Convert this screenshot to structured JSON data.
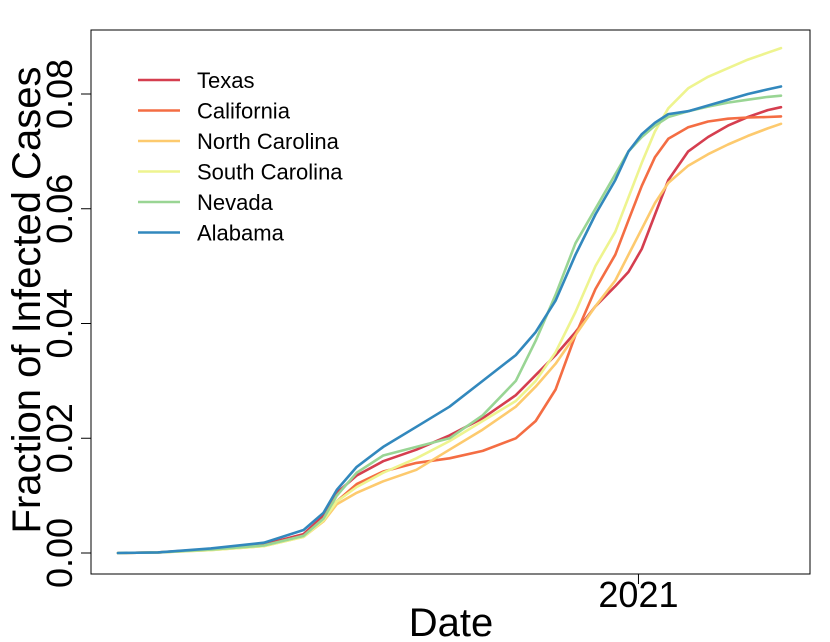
{
  "chart_data": {
    "type": "line",
    "title": "",
    "xlabel": "Date",
    "ylabel": "Fraction of Infected Cases",
    "x_tick_labels": [
      {
        "value": 0.785,
        "label": "2021"
      }
    ],
    "y_ticks": [
      0.0,
      0.02,
      0.04,
      0.06,
      0.08
    ],
    "y_tick_labels": [
      "0.00",
      "0.02",
      "0.04",
      "0.06",
      "0.08"
    ],
    "xlim": [
      0,
      1
    ],
    "ylim": [
      0.0,
      0.0885
    ],
    "grid": false,
    "legend_placement": "top-left",
    "series": [
      {
        "name": "Texas",
        "color": "#D53E4F",
        "x": [
          0,
          0.06,
          0.14,
          0.22,
          0.28,
          0.31,
          0.33,
          0.36,
          0.4,
          0.45,
          0.5,
          0.55,
          0.6,
          0.63,
          0.66,
          0.69,
          0.72,
          0.75,
          0.77,
          0.79,
          0.81,
          0.83,
          0.86,
          0.89,
          0.92,
          0.95,
          0.98,
          1.0
        ],
        "y": [
          0,
          0.0001,
          0.0007,
          0.0015,
          0.0033,
          0.0065,
          0.0105,
          0.0135,
          0.016,
          0.018,
          0.0205,
          0.0235,
          0.0275,
          0.031,
          0.0345,
          0.0385,
          0.043,
          0.0465,
          0.049,
          0.053,
          0.059,
          0.065,
          0.07,
          0.0725,
          0.0745,
          0.076,
          0.0772,
          0.0777
        ]
      },
      {
        "name": "California",
        "color": "#F46D43",
        "x": [
          0,
          0.06,
          0.14,
          0.22,
          0.28,
          0.31,
          0.33,
          0.36,
          0.4,
          0.45,
          0.5,
          0.55,
          0.6,
          0.63,
          0.66,
          0.69,
          0.72,
          0.75,
          0.77,
          0.79,
          0.81,
          0.83,
          0.86,
          0.89,
          0.92,
          0.95,
          0.98,
          1.0
        ],
        "y": [
          0,
          0.0001,
          0.0006,
          0.0013,
          0.003,
          0.006,
          0.009,
          0.012,
          0.0142,
          0.0157,
          0.0165,
          0.0178,
          0.02,
          0.023,
          0.0285,
          0.038,
          0.046,
          0.052,
          0.058,
          0.064,
          0.069,
          0.0722,
          0.0742,
          0.0752,
          0.0757,
          0.0759,
          0.076,
          0.0761
        ]
      },
      {
        "name": "North Carolina",
        "color": "#FDCA6E",
        "x": [
          0,
          0.06,
          0.14,
          0.22,
          0.28,
          0.31,
          0.33,
          0.36,
          0.4,
          0.45,
          0.5,
          0.55,
          0.6,
          0.63,
          0.66,
          0.69,
          0.72,
          0.75,
          0.77,
          0.79,
          0.81,
          0.83,
          0.86,
          0.89,
          0.92,
          0.95,
          0.98,
          1.0
        ],
        "y": [
          0,
          0.0001,
          0.0005,
          0.0012,
          0.0028,
          0.0055,
          0.0085,
          0.0105,
          0.0125,
          0.0145,
          0.018,
          0.0215,
          0.0255,
          0.029,
          0.033,
          0.038,
          0.043,
          0.0475,
          0.052,
          0.0565,
          0.061,
          0.0645,
          0.0675,
          0.0695,
          0.0712,
          0.0727,
          0.074,
          0.0748
        ]
      },
      {
        "name": "South Carolina",
        "color": "#EEF48F",
        "x": [
          0,
          0.06,
          0.14,
          0.22,
          0.28,
          0.31,
          0.33,
          0.36,
          0.4,
          0.45,
          0.5,
          0.55,
          0.6,
          0.63,
          0.66,
          0.69,
          0.72,
          0.75,
          0.77,
          0.79,
          0.81,
          0.83,
          0.86,
          0.89,
          0.92,
          0.95,
          0.98,
          1.0
        ],
        "y": [
          0,
          0.0001,
          0.0005,
          0.0012,
          0.0028,
          0.0057,
          0.009,
          0.0115,
          0.014,
          0.0165,
          0.0195,
          0.023,
          0.0265,
          0.03,
          0.035,
          0.042,
          0.05,
          0.056,
          0.062,
          0.068,
          0.0735,
          0.0775,
          0.081,
          0.083,
          0.0845,
          0.086,
          0.0872,
          0.088
        ]
      },
      {
        "name": "Nevada",
        "color": "#99D594",
        "x": [
          0,
          0.06,
          0.14,
          0.22,
          0.28,
          0.31,
          0.33,
          0.36,
          0.4,
          0.45,
          0.5,
          0.55,
          0.6,
          0.63,
          0.66,
          0.69,
          0.72,
          0.75,
          0.77,
          0.79,
          0.81,
          0.83,
          0.86,
          0.89,
          0.92,
          0.95,
          0.98,
          1.0
        ],
        "y": [
          0,
          0.0001,
          0.0006,
          0.0013,
          0.003,
          0.006,
          0.01,
          0.014,
          0.017,
          0.0185,
          0.02,
          0.024,
          0.03,
          0.037,
          0.045,
          0.054,
          0.06,
          0.066,
          0.07,
          0.0725,
          0.0745,
          0.076,
          0.077,
          0.0778,
          0.0785,
          0.079,
          0.0795,
          0.0797
        ]
      },
      {
        "name": "Alabama",
        "color": "#3288BD",
        "x": [
          0,
          0.06,
          0.14,
          0.22,
          0.28,
          0.31,
          0.33,
          0.36,
          0.4,
          0.45,
          0.5,
          0.55,
          0.6,
          0.63,
          0.66,
          0.69,
          0.72,
          0.75,
          0.77,
          0.79,
          0.81,
          0.83,
          0.86,
          0.89,
          0.92,
          0.95,
          0.98,
          1.0
        ],
        "y": [
          0,
          0.0001,
          0.0008,
          0.0018,
          0.004,
          0.007,
          0.011,
          0.015,
          0.0185,
          0.022,
          0.0255,
          0.03,
          0.0345,
          0.0385,
          0.044,
          0.052,
          0.059,
          0.065,
          0.07,
          0.073,
          0.075,
          0.0765,
          0.077,
          0.078,
          0.079,
          0.08,
          0.0808,
          0.0813
        ]
      }
    ]
  }
}
